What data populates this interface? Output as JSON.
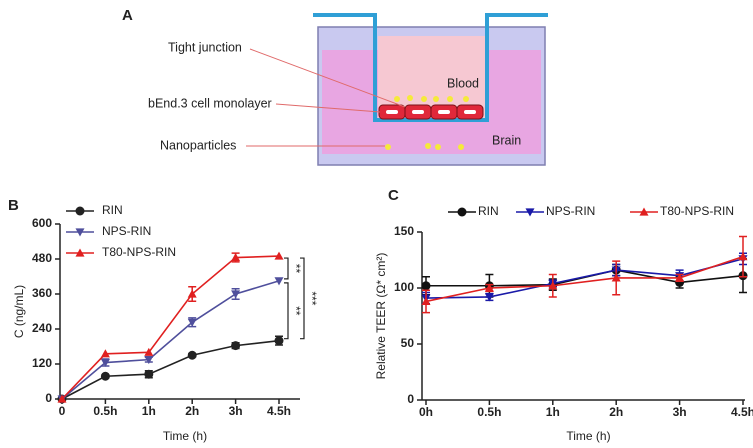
{
  "diagram": {
    "panel": "A",
    "labels": [
      "Tight junction",
      "bEnd.3 cell monolayer",
      "Nanoparticles"
    ],
    "regions": [
      "Blood",
      "Brain"
    ]
  },
  "chart_data": [
    {
      "type": "line",
      "panel": "B",
      "y_label": "C (ng/mL)",
      "x_label": "Time (h)",
      "categories": [
        "0",
        "0.5h",
        "1h",
        "2h",
        "3h",
        "4.5h"
      ],
      "ylim": [
        0,
        600
      ],
      "yticks": [
        0,
        120,
        240,
        360,
        480,
        600
      ],
      "legend": "top-left",
      "series": [
        {
          "name": "RIN",
          "color": "#222222",
          "marker": "circle",
          "values": [
            0,
            78,
            85,
            150,
            183,
            200
          ],
          "errors": [
            0,
            5,
            12,
            5,
            10,
            15
          ]
        },
        {
          "name": "NPS-RIN",
          "color": "#4f4f9c",
          "marker": "triangle-down",
          "values": [
            0,
            125,
            135,
            263,
            360,
            405
          ],
          "errors": [
            0,
            12,
            8,
            15,
            18,
            0
          ]
        },
        {
          "name": "T80-NPS-RIN",
          "color": "#e02020",
          "marker": "triangle-up",
          "values": [
            0,
            155,
            160,
            360,
            485,
            490
          ],
          "errors": [
            0,
            0,
            0,
            25,
            15,
            0
          ]
        }
      ],
      "annotations": [
        "**",
        "**",
        "***"
      ]
    },
    {
      "type": "line",
      "panel": "C",
      "y_label": "Relative TEER (Ω* cm²)",
      "x_label": "Time (h)",
      "categories": [
        "0h",
        "0.5h",
        "1h",
        "2h",
        "3h",
        "4.5h"
      ],
      "ylim": [
        0,
        150
      ],
      "yticks": [
        0,
        50,
        100,
        150
      ],
      "legend": "top",
      "series": [
        {
          "name": "RIN",
          "color": "#111111",
          "marker": "circle",
          "values": [
            102,
            102,
            103,
            116,
            105,
            111
          ],
          "errors": [
            8,
            10,
            5,
            5,
            5,
            15
          ]
        },
        {
          "name": "NPS-RIN",
          "color": "#1a1aa8",
          "marker": "triangle-down",
          "values": [
            91,
            92,
            104,
            116,
            111,
            126
          ],
          "errors": [
            5,
            3,
            3,
            5,
            5,
            5
          ]
        },
        {
          "name": "T80-NPS-RIN",
          "color": "#e02020",
          "marker": "triangle-up",
          "values": [
            88,
            100,
            102,
            109,
            109,
            128
          ],
          "errors": [
            10,
            3,
            10,
            15,
            3,
            18
          ]
        }
      ]
    }
  ]
}
